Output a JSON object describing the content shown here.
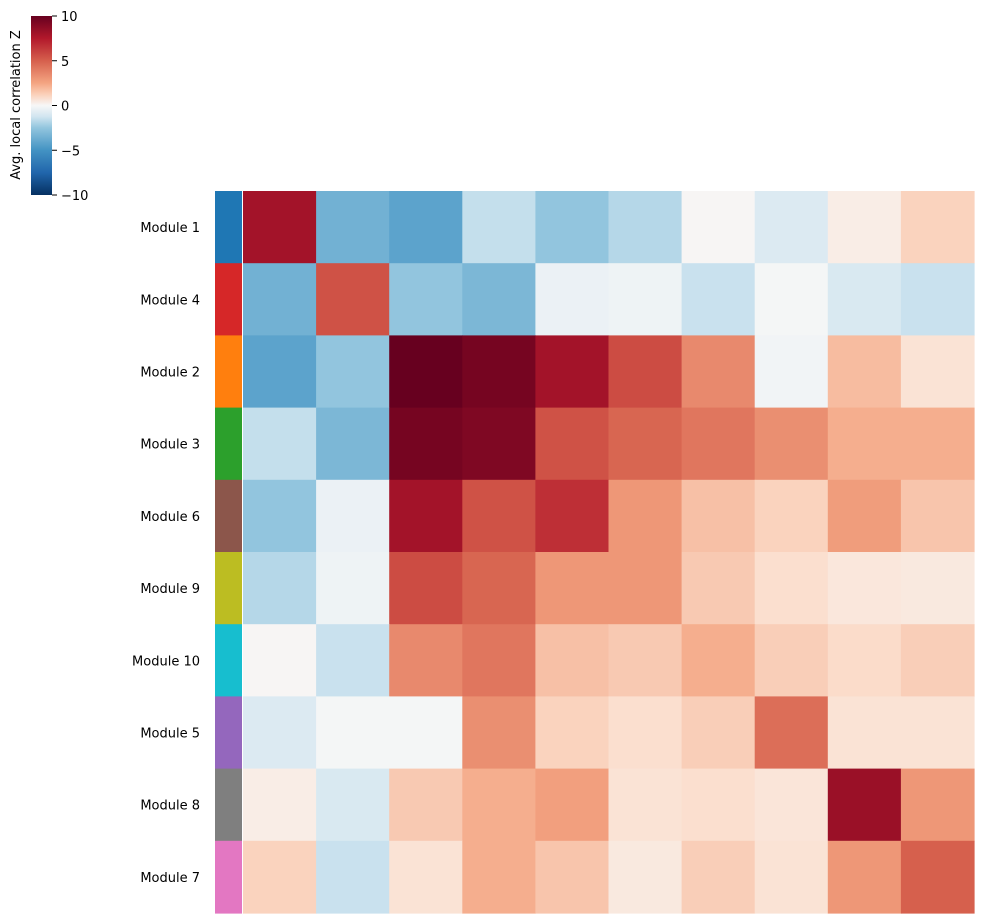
{
  "chart_data": {
    "type": "heatmap",
    "rows": [
      "Module 1",
      "Module 4",
      "Module 2",
      "Module 3",
      "Module 6",
      "Module 9",
      "Module 10",
      "Module 5",
      "Module 8",
      "Module 7"
    ],
    "row_colors": [
      "#1f77b4",
      "#d62728",
      "#ff7f0e",
      "#2ca02c",
      "#8c564b",
      "#bcbd22",
      "#17becf",
      "#9467bd",
      "#7f7f7f",
      "#e377c2"
    ],
    "values": [
      [
        8.0,
        -3.5,
        -4.2,
        -1.5,
        -2.5,
        -1.8,
        0.1,
        -0.9,
        0.5,
        1.5
      ],
      [
        -3.5,
        5.5,
        -2.5,
        -3.2,
        -0.4,
        -0.3,
        -1.4,
        -0.1,
        -1.0,
        -1.4
      ],
      [
        -4.2,
        -2.5,
        10.0,
        9.5,
        8.0,
        5.7,
        3.5,
        -0.2,
        2.0,
        1.0
      ],
      [
        -1.5,
        -3.2,
        9.5,
        9.2,
        5.5,
        4.8,
        4.2,
        3.3,
        2.3,
        2.3
      ],
      [
        -2.5,
        -0.4,
        8.0,
        5.5,
        6.7,
        3.0,
        1.9,
        1.5,
        2.8,
        1.8
      ],
      [
        -1.8,
        -0.3,
        5.7,
        4.8,
        3.0,
        3.0,
        1.7,
        1.2,
        0.8,
        0.7
      ],
      [
        0.1,
        -1.4,
        3.5,
        4.2,
        1.9,
        1.7,
        2.3,
        1.6,
        1.3,
        1.6
      ],
      [
        -0.9,
        -0.1,
        -0.1,
        3.3,
        1.5,
        1.2,
        1.6,
        4.5,
        1.0,
        1.0
      ],
      [
        0.5,
        -1.0,
        1.7,
        2.3,
        2.7,
        1.0,
        1.2,
        0.9,
        8.3,
        3.0
      ],
      [
        1.5,
        -1.4,
        1.0,
        2.3,
        1.8,
        0.7,
        1.6,
        1.0,
        3.0,
        5.0
      ]
    ],
    "colorbar": {
      "label": "Avg. local correlation Z",
      "vmin": -10,
      "vmax": 10,
      "ticks": [
        10,
        5,
        0,
        -5,
        -10
      ],
      "tick_labels": [
        "10",
        "5",
        "0",
        "−5",
        "−10"
      ],
      "colormap": "RdBu_r"
    }
  }
}
